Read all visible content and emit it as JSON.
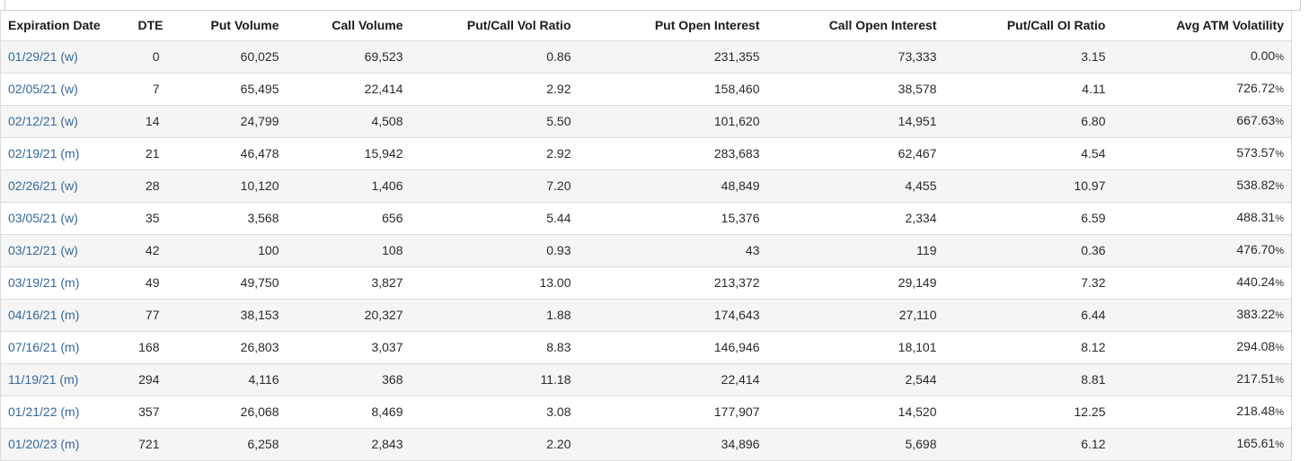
{
  "colors": {
    "link": "#33689D",
    "stripe": "#f5f5f5",
    "border": "#dcdcdc",
    "header_text": "#1b1b1b",
    "body_text": "#2a2a2a"
  },
  "table": {
    "percent_sign": "%",
    "columns": [
      {
        "key": "expiration_date",
        "label": "Expiration Date",
        "align": "left",
        "type": "link"
      },
      {
        "key": "dte",
        "label": "DTE",
        "align": "right",
        "type": "number"
      },
      {
        "key": "put_volume",
        "label": "Put Volume",
        "align": "right",
        "type": "number"
      },
      {
        "key": "call_volume",
        "label": "Call Volume",
        "align": "right",
        "type": "number"
      },
      {
        "key": "put_call_vol_ratio",
        "label": "Put/Call Vol Ratio",
        "align": "right",
        "type": "number"
      },
      {
        "key": "put_open_interest",
        "label": "Put Open Interest",
        "align": "right",
        "type": "number"
      },
      {
        "key": "call_open_interest",
        "label": "Call Open Interest",
        "align": "right",
        "type": "number"
      },
      {
        "key": "put_call_oi_ratio",
        "label": "Put/Call OI Ratio",
        "align": "right",
        "type": "number"
      },
      {
        "key": "avg_atm_volatility",
        "label": "Avg ATM Volatility",
        "align": "right",
        "type": "percent"
      }
    ],
    "rows": [
      [
        "01/29/21 (w)",
        "0",
        "60,025",
        "69,523",
        "0.86",
        "231,355",
        "73,333",
        "3.15",
        "0.00"
      ],
      [
        "02/05/21 (w)",
        "7",
        "65,495",
        "22,414",
        "2.92",
        "158,460",
        "38,578",
        "4.11",
        "726.72"
      ],
      [
        "02/12/21 (w)",
        "14",
        "24,799",
        "4,508",
        "5.50",
        "101,620",
        "14,951",
        "6.80",
        "667.63"
      ],
      [
        "02/19/21 (m)",
        "21",
        "46,478",
        "15,942",
        "2.92",
        "283,683",
        "62,467",
        "4.54",
        "573.57"
      ],
      [
        "02/26/21 (w)",
        "28",
        "10,120",
        "1,406",
        "7.20",
        "48,849",
        "4,455",
        "10.97",
        "538.82"
      ],
      [
        "03/05/21 (w)",
        "35",
        "3,568",
        "656",
        "5.44",
        "15,376",
        "2,334",
        "6.59",
        "488.31"
      ],
      [
        "03/12/21 (w)",
        "42",
        "100",
        "108",
        "0.93",
        "43",
        "119",
        "0.36",
        "476.70"
      ],
      [
        "03/19/21 (m)",
        "49",
        "49,750",
        "3,827",
        "13.00",
        "213,372",
        "29,149",
        "7.32",
        "440.24"
      ],
      [
        "04/16/21 (m)",
        "77",
        "38,153",
        "20,327",
        "1.88",
        "174,643",
        "27,110",
        "6.44",
        "383.22"
      ],
      [
        "07/16/21 (m)",
        "168",
        "26,803",
        "3,037",
        "8.83",
        "146,946",
        "18,101",
        "8.12",
        "294.08"
      ],
      [
        "11/19/21 (m)",
        "294",
        "4,116",
        "368",
        "11.18",
        "22,414",
        "2,544",
        "8.81",
        "217.51"
      ],
      [
        "01/21/22 (m)",
        "357",
        "26,068",
        "8,469",
        "3.08",
        "177,907",
        "14,520",
        "12.25",
        "218.48"
      ],
      [
        "01/20/23 (m)",
        "721",
        "6,258",
        "2,843",
        "2.20",
        "34,896",
        "5,698",
        "6.12",
        "165.61"
      ]
    ]
  }
}
